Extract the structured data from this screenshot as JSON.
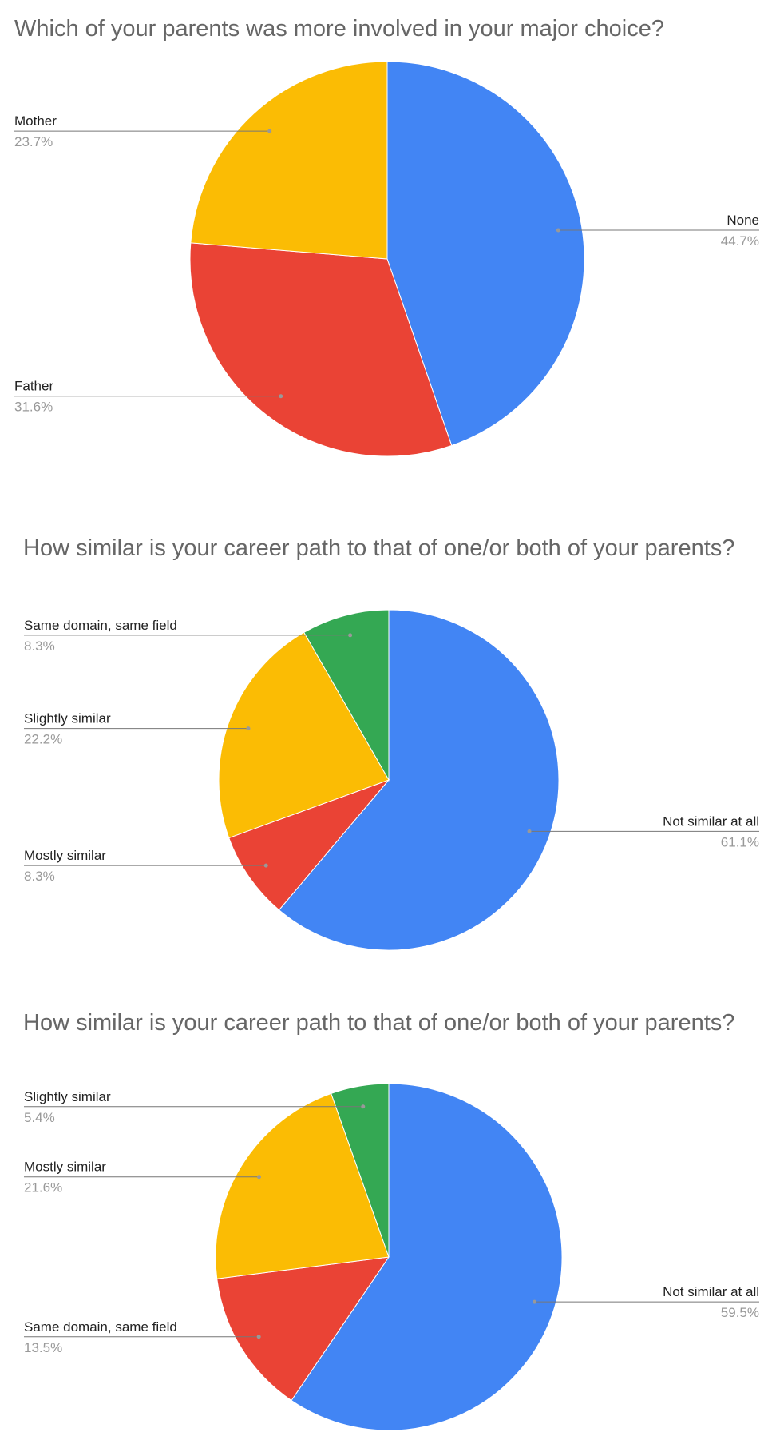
{
  "chart_data": [
    {
      "type": "pie",
      "title": "Which of your parents was more involved in your major choice?",
      "categories": [
        "None",
        "Father",
        "Mother"
      ],
      "values": [
        44.7,
        31.6,
        23.7
      ],
      "value_labels": [
        "44.7%",
        "31.6%",
        "23.7%"
      ],
      "colors": [
        "#4285f4",
        "#ea4335",
        "#fbbc04"
      ]
    },
    {
      "type": "pie",
      "title": "How similar is your career path to that of one/or both of your parents?",
      "categories": [
        "Not similar at all",
        "Mostly similar",
        "Slightly similar",
        "Same domain, same field"
      ],
      "values": [
        61.1,
        8.3,
        22.2,
        8.3
      ],
      "value_labels": [
        "61.1%",
        "8.3%",
        "22.2%",
        "8.3%"
      ],
      "colors": [
        "#4285f4",
        "#ea4335",
        "#fbbc04",
        "#34a853"
      ]
    },
    {
      "type": "pie",
      "title": "How similar is your career path to that of one/or both of your parents?",
      "categories": [
        "Not similar at all",
        "Same domain, same field",
        "Mostly similar",
        "Slightly similar"
      ],
      "values": [
        59.5,
        13.5,
        21.6,
        5.4
      ],
      "value_labels": [
        "59.5%",
        "13.5%",
        "21.6%",
        "5.4%"
      ],
      "colors": [
        "#4285f4",
        "#ea4335",
        "#fbbc04",
        "#34a853"
      ]
    }
  ]
}
